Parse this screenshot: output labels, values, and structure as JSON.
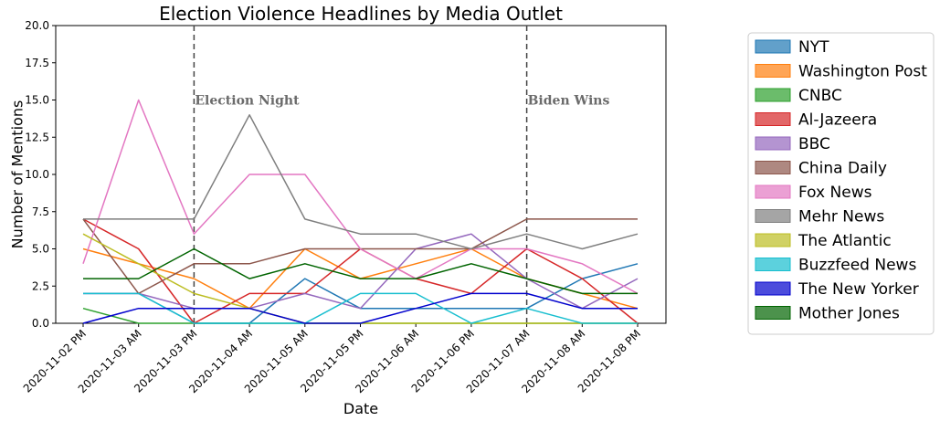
{
  "chart_data": {
    "type": "line",
    "title": "Election Violence Headlines by Media Outlet",
    "xlabel": "Date",
    "ylabel": "Number of Mentions",
    "ylim": [
      0,
      20
    ],
    "yticks": [
      "0.0",
      "2.5",
      "5.0",
      "7.5",
      "10.0",
      "12.5",
      "15.0",
      "17.5",
      "20.0"
    ],
    "categories": [
      "2020-11-02 PM",
      "2020-11-03 AM",
      "2020-11-03 PM",
      "2020-11-04 AM",
      "2020-11-05 AM",
      "2020-11-05 PM",
      "2020-11-06 AM",
      "2020-11-06 PM",
      "2020-11-07 AM",
      "2020-11-08 AM",
      "2020-11-08 PM"
    ],
    "grid": false,
    "legend_position": "outside-right",
    "annotations": [
      {
        "text": "Election Night",
        "category": "2020-11-03 PM",
        "y": 15
      },
      {
        "text": "Biden Wins",
        "category": "2020-11-07 AM",
        "y": 15
      }
    ],
    "series": [
      {
        "name": "NYT",
        "color": "#1f77b4",
        "values": [
          2,
          2,
          0,
          0,
          3,
          1,
          1,
          1,
          1,
          3,
          4
        ]
      },
      {
        "name": "Washington Post",
        "color": "#ff7f0e",
        "values": [
          5,
          4,
          3,
          1,
          5,
          3,
          4,
          5,
          3,
          2,
          1
        ]
      },
      {
        "name": "CNBC",
        "color": "#2ca02c",
        "values": [
          1,
          0,
          0,
          0,
          0,
          0,
          0,
          0,
          0,
          0,
          0
        ]
      },
      {
        "name": "Al-Jazeera",
        "color": "#d62728",
        "values": [
          7,
          5,
          0,
          2,
          2,
          5,
          3,
          2,
          5,
          3,
          0
        ]
      },
      {
        "name": "BBC",
        "color": "#9467bd",
        "values": [
          2,
          2,
          1,
          1,
          2,
          1,
          5,
          6,
          3,
          1,
          3
        ]
      },
      {
        "name": "China Daily",
        "color": "#8c564b",
        "values": [
          7,
          2,
          4,
          4,
          5,
          5,
          5,
          5,
          7,
          7,
          7
        ]
      },
      {
        "name": "Fox News",
        "color": "#e377c2",
        "values": [
          4,
          15,
          6,
          10,
          10,
          5,
          3,
          5,
          5,
          4,
          2
        ]
      },
      {
        "name": "Mehr News",
        "color": "#7f7f7f",
        "values": [
          7,
          7,
          7,
          14,
          7,
          6,
          6,
          5,
          6,
          5,
          6
        ]
      },
      {
        "name": "The Atlantic",
        "color": "#bcbd22",
        "values": [
          6,
          4,
          2,
          1,
          0,
          0,
          0,
          0,
          0,
          0,
          0
        ]
      },
      {
        "name": "Buzzfeed News",
        "color": "#17becf",
        "values": [
          2,
          2,
          0,
          0,
          0,
          2,
          2,
          0,
          1,
          0,
          0
        ]
      },
      {
        "name": "The New Yorker",
        "color": "#0000cd",
        "values": [
          0,
          1,
          1,
          1,
          0,
          0,
          1,
          2,
          2,
          1,
          1
        ]
      },
      {
        "name": "Mother Jones",
        "color": "#006400",
        "values": [
          3,
          3,
          5,
          3,
          4,
          3,
          3,
          4,
          3,
          2,
          2
        ]
      }
    ]
  }
}
